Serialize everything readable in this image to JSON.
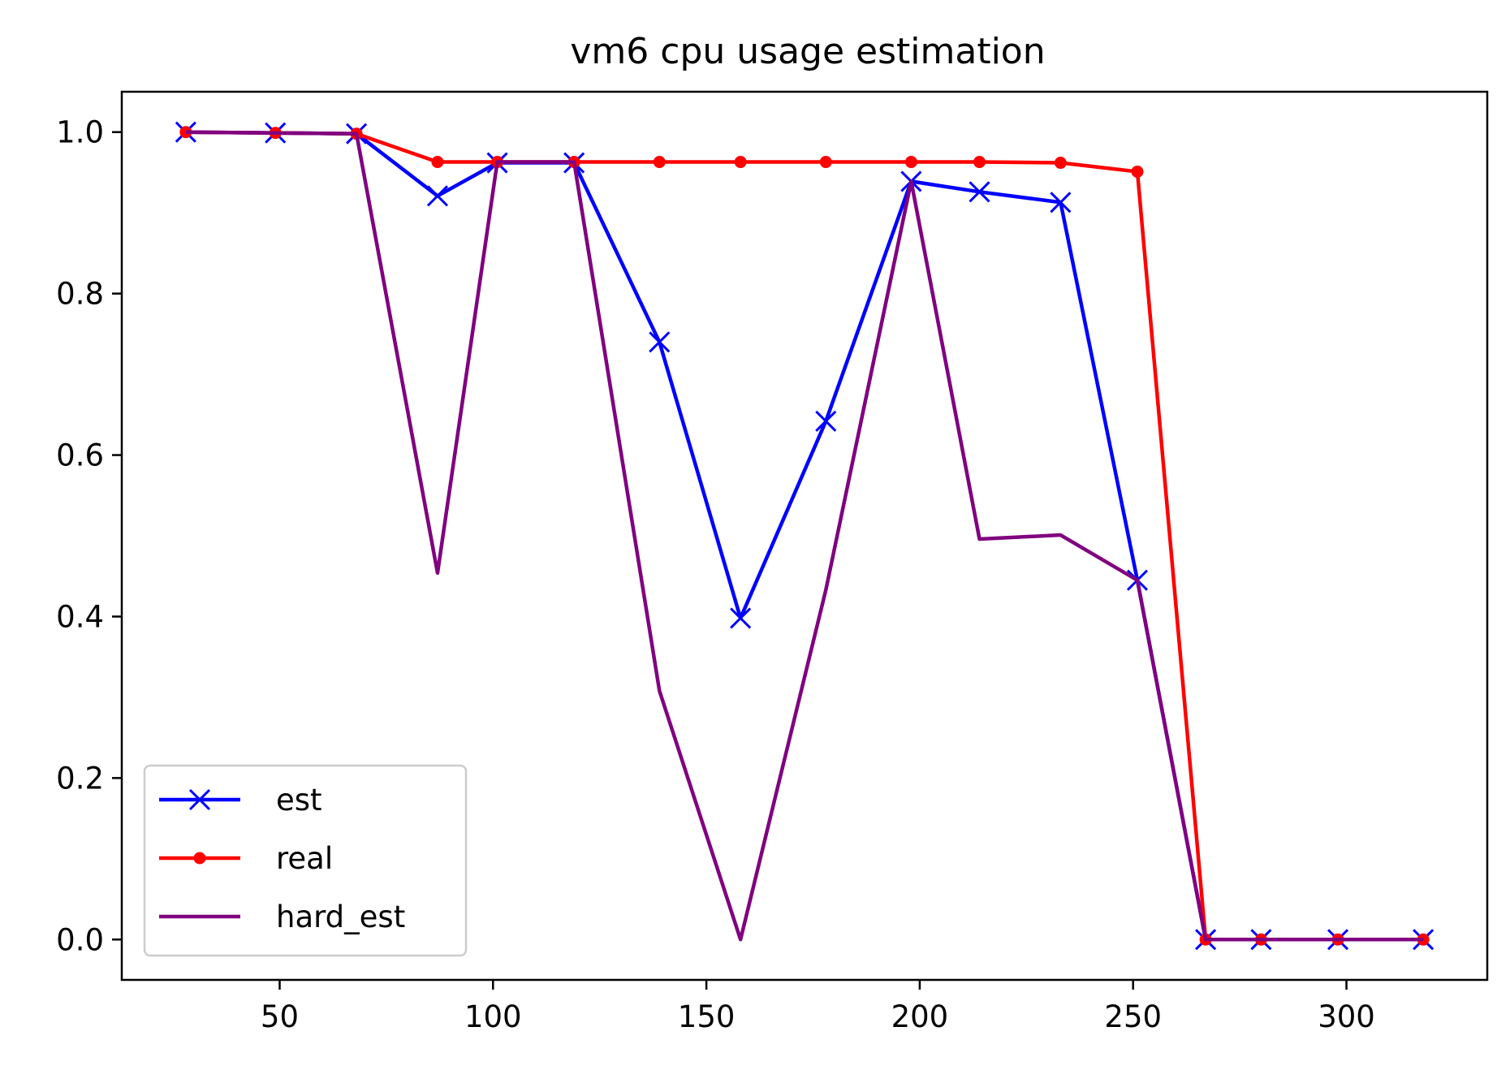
{
  "chart_data": {
    "type": "line",
    "title": "vm6 cpu usage estimation",
    "xlabel": "",
    "ylabel": "",
    "xlim": [
      13,
      333
    ],
    "ylim": [
      -0.05,
      1.05
    ],
    "xticks": [
      50,
      100,
      150,
      200,
      250,
      300
    ],
    "yticks": [
      0.0,
      0.2,
      0.4,
      0.6,
      0.8,
      1.0
    ],
    "xtick_labels": [
      "50",
      "100",
      "150",
      "200",
      "250",
      "300"
    ],
    "ytick_labels": [
      "0.0",
      "0.2",
      "0.4",
      "0.6",
      "0.8",
      "1.0"
    ],
    "grid": false,
    "legend_position": "lower-left",
    "x": [
      28,
      49,
      68,
      87,
      101,
      119,
      139,
      158,
      178,
      198,
      214,
      233,
      251,
      267,
      280,
      298,
      318
    ],
    "series": [
      {
        "name": "est",
        "color": "#0000ff",
        "marker": "x",
        "values": [
          1.0,
          0.999,
          0.998,
          0.921,
          0.962,
          0.962,
          0.74,
          0.398,
          0.642,
          0.939,
          0.926,
          0.913,
          0.445,
          0.0,
          0.0,
          0.0,
          0.0
        ]
      },
      {
        "name": "real",
        "color": "#ff0000",
        "marker": "dot",
        "values": [
          1.0,
          0.999,
          0.998,
          0.963,
          0.963,
          0.963,
          0.963,
          0.963,
          0.963,
          0.963,
          0.963,
          0.962,
          0.951,
          0.0,
          0.0,
          0.0,
          0.0
        ]
      },
      {
        "name": "hard_est",
        "color": "#800080",
        "marker": "none",
        "values": [
          1.0,
          0.999,
          0.998,
          0.454,
          0.963,
          0.963,
          0.308,
          0.0,
          0.433,
          0.939,
          0.496,
          0.501,
          0.445,
          0.0,
          0.0,
          0.0,
          0.0
        ]
      }
    ]
  }
}
